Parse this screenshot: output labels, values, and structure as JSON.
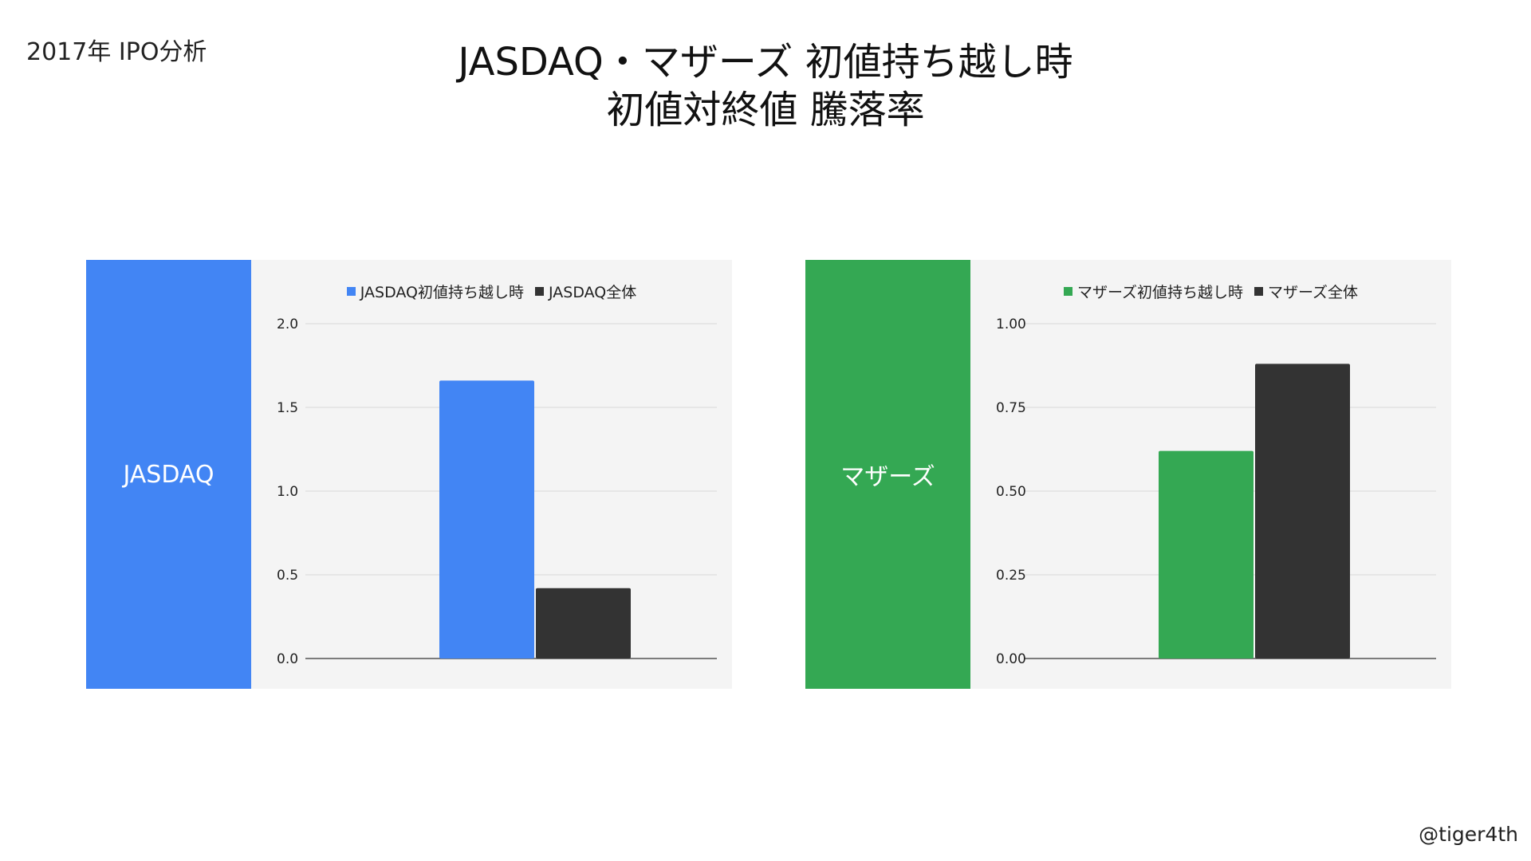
{
  "header": {
    "top_label": "2017年 IPO分析",
    "title_line1": "JASDAQ・マザーズ 初値持ち越し時",
    "title_line2": "初値対終値 騰落率",
    "credit": "@tiger4th"
  },
  "colors": {
    "jasdaq": "#4285f4",
    "mothers": "#34a853",
    "overall": "#333333",
    "chart_bg": "#f4f4f4"
  },
  "panels": [
    {
      "side_label": "JASDAQ",
      "side_color": "#4285f4"
    },
    {
      "side_label": "マザーズ",
      "side_color": "#34a853"
    }
  ],
  "chart_data": [
    {
      "type": "bar",
      "categories": [
        ""
      ],
      "series": [
        {
          "name": "JASDAQ初値持ち越し時",
          "values": [
            1.66
          ],
          "color": "#4285f4"
        },
        {
          "name": "JASDAQ全体",
          "values": [
            0.42
          ],
          "color": "#333333"
        }
      ],
      "ylim": [
        0,
        2.0
      ],
      "yticks": [
        0.0,
        0.5,
        1.0,
        1.5,
        2.0
      ],
      "ytick_labels": [
        "0.0",
        "0.5",
        "1.0",
        "1.5",
        "2.0"
      ],
      "grid": true,
      "legend": "top-center"
    },
    {
      "type": "bar",
      "categories": [
        ""
      ],
      "series": [
        {
          "name": "マザーズ初値持ち越し時",
          "values": [
            0.62
          ],
          "color": "#34a853"
        },
        {
          "name": "マザーズ全体",
          "values": [
            0.88
          ],
          "color": "#333333"
        }
      ],
      "ylim": [
        0,
        1.0
      ],
      "yticks": [
        0.0,
        0.25,
        0.5,
        0.75,
        1.0
      ],
      "ytick_labels": [
        "0.00",
        "0.25",
        "0.50",
        "0.75",
        "1.00"
      ],
      "grid": true,
      "legend": "top-center"
    }
  ]
}
